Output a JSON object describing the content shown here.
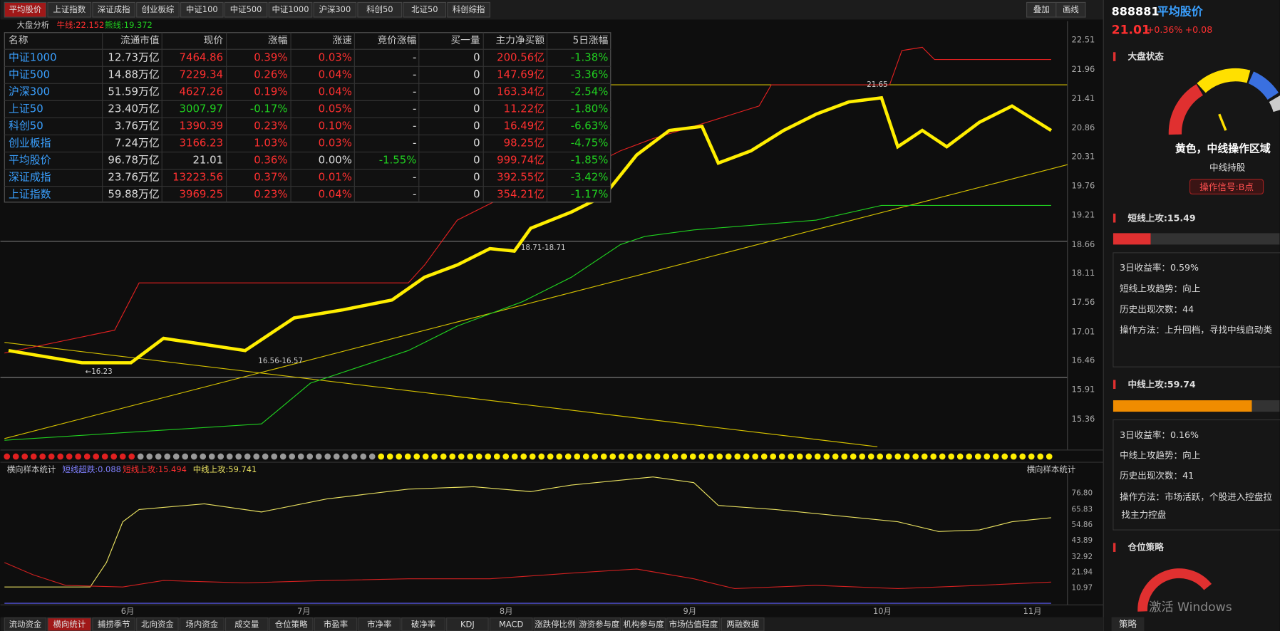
{
  "tabs": [
    "平均股价",
    "上证指数",
    "深证成指",
    "创业板综",
    "中证100",
    "中证500",
    "中证1000",
    "沪深300",
    "科创50",
    "北证50",
    "科创综指"
  ],
  "toolbar": [
    "叠加",
    "画线"
  ],
  "chart": {
    "legend": {
      "title": "大盘分析",
      "bull": "牛线:22.152",
      "bear": "熊线:19.372"
    },
    "yaxis": [
      "22.51",
      "21.96",
      "21.41",
      "20.86",
      "20.31",
      "19.76",
      "19.21",
      "18.66",
      "18.11",
      "17.56",
      "17.01",
      "16.46",
      "15.91",
      "15.36"
    ],
    "annotations": [
      "21.65",
      "18.71-18.71",
      "16.56-16.57",
      "←16.23"
    ],
    "months": [
      "6月",
      "7月",
      "8月",
      "9月",
      "10月",
      "11月"
    ]
  },
  "table": {
    "columns": [
      "名称",
      "流通市值",
      "现价",
      "涨幅",
      "涨速",
      "竞价涨幅",
      "买一量",
      "主力净买额",
      "5日涨幅"
    ],
    "rows": [
      [
        "中证1000",
        "12.73万亿",
        "7464.86",
        "0.39%",
        "0.03%",
        "-",
        "0",
        "200.56亿",
        "-1.38%"
      ],
      [
        "中证500",
        "14.88万亿",
        "7229.34",
        "0.26%",
        "0.04%",
        "-",
        "0",
        "147.69亿",
        "-3.36%"
      ],
      [
        "沪深300",
        "51.59万亿",
        "4627.26",
        "0.19%",
        "0.04%",
        "-",
        "0",
        "163.34亿",
        "-2.54%"
      ],
      [
        "上证50",
        "23.40万亿",
        "3007.97",
        "-0.17%",
        "0.05%",
        "-",
        "0",
        "11.22亿",
        "-1.80%"
      ],
      [
        "科创50",
        "3.76万亿",
        "1390.39",
        "0.23%",
        "0.10%",
        "-",
        "0",
        "16.49亿",
        "-6.63%"
      ],
      [
        "创业板指",
        "7.24万亿",
        "3166.23",
        "1.03%",
        "0.03%",
        "-",
        "0",
        "98.25亿",
        "-4.75%"
      ],
      [
        "平均股价",
        "96.78万亿",
        "21.01",
        "0.36%",
        "0.00%",
        "-1.55%",
        "0",
        "999.74亿",
        "-1.85%"
      ],
      [
        "深证成指",
        "23.76万亿",
        "13223.56",
        "0.37%",
        "0.01%",
        "-",
        "0",
        "392.55亿",
        "-3.42%"
      ],
      [
        "上证指数",
        "59.88万亿",
        "3969.25",
        "0.23%",
        "0.04%",
        "-",
        "0",
        "354.21亿",
        "-1.17%"
      ]
    ]
  },
  "indicator": {
    "title": "横向样本统计",
    "s1": "短线超跌:0.088",
    "s2": "短线上攻:15.494",
    "s3": "中线上攻:59.741",
    "right": "横向样本统计",
    "yaxis": [
      "76.80",
      "65.83",
      "54.86",
      "43.89",
      "32.92",
      "21.94",
      "10.97"
    ]
  },
  "bottom_tabs": [
    "流动资金",
    "横向统计",
    "捕捞季节",
    "北向资金",
    "场内资金",
    "成交量",
    "仓位策略",
    "市盈率",
    "市净率",
    "破净率",
    "KDJ",
    "MACD",
    "涨跌停比例",
    "游资参与度",
    "机构参与度",
    "市场估值程度",
    "两融数据"
  ],
  "panel": {
    "code": "888881",
    "name": "平均股价",
    "price": "21.01",
    "pct": "+0.36%",
    "chg": "+0.08",
    "state": {
      "title": "大盘状态",
      "status": "黄色，中线操作区域",
      "hold": "中线持股",
      "signal": "操作信号:B点"
    },
    "short": {
      "title": "短线上攻:15.49",
      "items": [
        "3日收益率：0.59%",
        "短线上攻趋势：向上",
        "历史出现次数：44",
        "操作方法：上升回档，寻找中线启动类"
      ]
    },
    "mid": {
      "title": "中线上攻:59.74",
      "items": [
        "3日收益率：0.16%",
        "中线上攻趋势：向上",
        "历史出现次数：41",
        "操作方法：市场活跃，个股进入控盘拉",
        "找主力控盘"
      ]
    },
    "position": {
      "title": "仓位策略"
    },
    "bottom": "策略",
    "watermark": "激活 Windows"
  }
}
